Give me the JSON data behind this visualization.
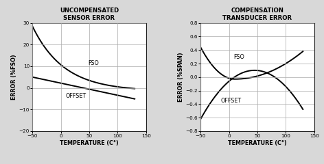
{
  "left_title": "UNCOMPENSATED\nSENSOR ERROR",
  "right_title": "COMPENSATION\nTRANSDUCER ERROR",
  "xlabel": "TEMPERATURE (C°)",
  "left_ylabel": "ERROR (%FSO)",
  "right_ylabel": "ERROR (%SPAN)",
  "left_xlim": [
    -50,
    150
  ],
  "left_ylim": [
    -20,
    30
  ],
  "left_xticks": [
    -50,
    0,
    50,
    100,
    150
  ],
  "left_yticks": [
    -20,
    -10,
    0,
    10,
    20,
    30
  ],
  "right_xlim": [
    -50,
    150
  ],
  "right_ylim": [
    -0.8,
    0.8
  ],
  "right_xticks": [
    -50,
    0,
    50,
    100,
    150
  ],
  "right_yticks": [
    -0.8,
    -0.6,
    -0.4,
    -0.2,
    0.0,
    0.2,
    0.4,
    0.6,
    0.8
  ],
  "line_color": "#000000",
  "bg_color": "#d8d8d8",
  "plot_bg": "#ffffff",
  "grid_color": "#aaaaaa",
  "label_fontsize": 5.8,
  "title_fontsize": 6.2,
  "tick_fontsize": 5.2,
  "linewidth": 1.4
}
